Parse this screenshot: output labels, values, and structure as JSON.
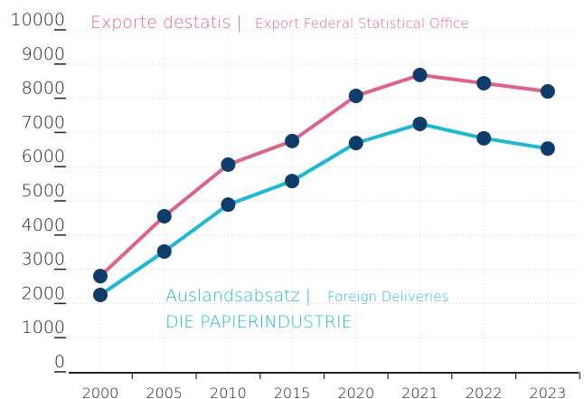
{
  "chart_data": {
    "type": "line",
    "categories": [
      "2000",
      "2005",
      "2010",
      "2015",
      "2020",
      "2021",
      "2022",
      "2023"
    ],
    "series": [
      {
        "name": "Exporte destatis |",
        "name_en": "Export Federal Statistical Office",
        "color": "#de6388",
        "values": [
          2800,
          4550,
          6060,
          6750,
          8070,
          8680,
          8440,
          8200
        ]
      },
      {
        "name": "Auslandsabsatz |",
        "name_en": "Foreign Deliveries",
        "source": "DIE PAPIERINDUSTRIE",
        "color": "#1fb8d4",
        "values": [
          2250,
          3520,
          4890,
          5580,
          6690,
          7250,
          6830,
          6530
        ]
      }
    ],
    "marker_color": "#0e3d6b",
    "ylim": [
      0,
      10000
    ],
    "yticks": [
      0,
      1000,
      2000,
      3000,
      4000,
      5000,
      6000,
      7000,
      8000,
      9000,
      10000
    ],
    "grid": true
  }
}
